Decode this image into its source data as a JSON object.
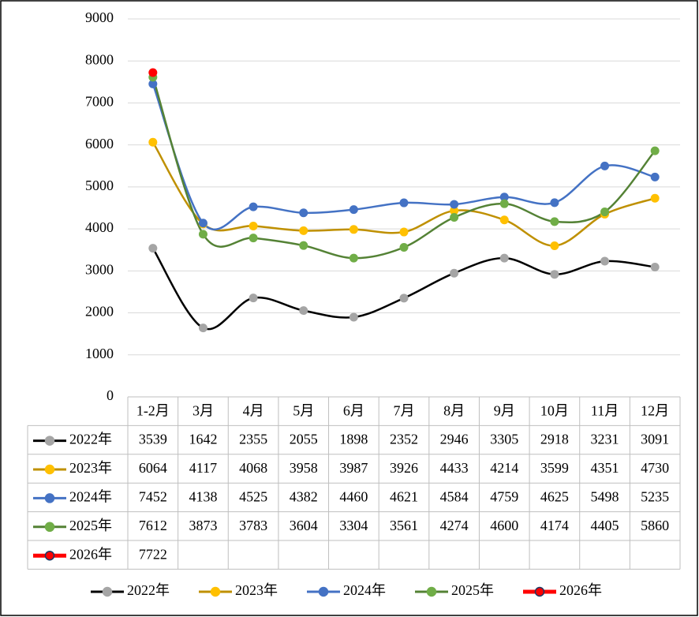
{
  "chart_data": {
    "type": "line",
    "categories": [
      "1-2月",
      "3月",
      "4月",
      "5月",
      "6月",
      "7月",
      "8月",
      "9月",
      "10月",
      "11月",
      "12月"
    ],
    "series": [
      {
        "name": "2022年",
        "color": "#000000",
        "marker_color": "#a5a5a5",
        "values": [
          3539,
          1642,
          2355,
          2055,
          1898,
          2352,
          2946,
          3305,
          2918,
          3231,
          3091
        ]
      },
      {
        "name": "2023年",
        "color": "#bf9000",
        "marker_color": "#ffc000",
        "values": [
          6064,
          4117,
          4068,
          3958,
          3987,
          3926,
          4433,
          4214,
          3599,
          4351,
          4730
        ]
      },
      {
        "name": "2024年",
        "color": "#4472c4",
        "marker_color": "#4472c4",
        "values": [
          7452,
          4138,
          4525,
          4382,
          4460,
          4621,
          4584,
          4759,
          4625,
          5498,
          5235
        ]
      },
      {
        "name": "2025年",
        "color": "#548235",
        "marker_color": "#70ad47",
        "values": [
          7612,
          3873,
          3783,
          3604,
          3304,
          3561,
          4274,
          4600,
          4174,
          4405,
          5860
        ]
      },
      {
        "name": "2026年",
        "color": "#ff0000",
        "marker_color": "#ff0000",
        "values": [
          7722,
          null,
          null,
          null,
          null,
          null,
          null,
          null,
          null,
          null,
          null
        ]
      }
    ],
    "ylim": [
      0,
      9000
    ],
    "yticks": [
      0,
      1000,
      2000,
      3000,
      4000,
      5000,
      6000,
      7000,
      8000,
      9000
    ],
    "grid": true,
    "smooth": true,
    "data_table": true,
    "legend": "bottom"
  }
}
